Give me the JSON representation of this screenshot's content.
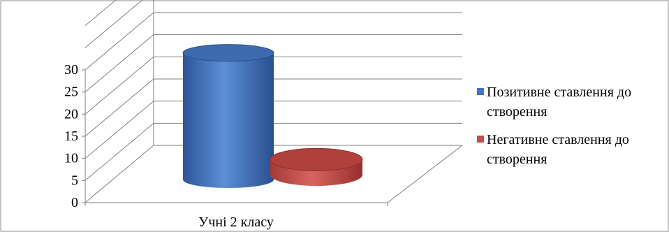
{
  "chart_data": {
    "type": "bar",
    "categories": [
      "Учні 2 класу"
    ],
    "series": [
      {
        "name": "Позитивне ставлення до створення",
        "values": [
          28
        ],
        "color": "#4472C4"
      },
      {
        "name": "Негативне ставлення до створення",
        "values": [
          5
        ],
        "color": "#C0504D"
      }
    ],
    "ylim": [
      0,
      30
    ],
    "yticks": [
      "0",
      "5",
      "10",
      "15",
      "20",
      "25",
      "30"
    ],
    "grid": true,
    "legend_position": "right",
    "bar_shape": "cylinder-3d"
  },
  "colors": {
    "positive": "#4472C4",
    "negative": "#C0504D"
  }
}
